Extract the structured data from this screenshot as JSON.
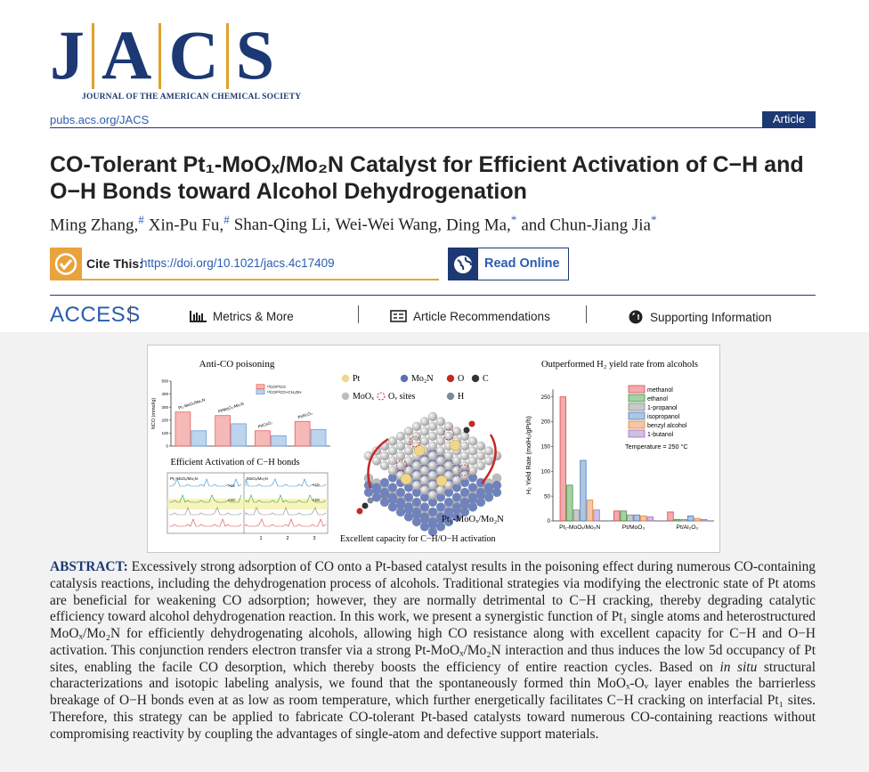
{
  "header": {
    "logo": {
      "letters": [
        "J",
        "A",
        "C",
        "S"
      ],
      "subtitle": "JOURNAL OF THE AMERICAN CHEMICAL SOCIETY"
    },
    "url": "pubs.acs.org/JACS",
    "article_type": "Article"
  },
  "title": "CO-Tolerant Pt₁-MoOₓ/Mo₂N Catalyst for Efficient Activation of C−H and O−H Bonds toward Alcohol Dehydrogenation",
  "authors": [
    {
      "name": "Ming Zhang,",
      "mark": "#"
    },
    {
      "name": "Xin-Pu Fu,",
      "mark": "#"
    },
    {
      "name": "Shan-Qing Li,"
    },
    {
      "name": "Wei-Wei Wang,"
    },
    {
      "name": "Ding Ma,",
      "mark": "*"
    },
    {
      "name": "and Chun-Jiang Jia",
      "mark": "*"
    }
  ],
  "cite": {
    "label": "Cite This:",
    "doi": "https://doi.org/10.1021/jacs.4c17409"
  },
  "read_online": "Read Online",
  "access": {
    "label": "ACCESS",
    "links": [
      "Metrics & More",
      "Article Recommendations",
      "Supporting Information"
    ]
  },
  "toc_graphic": {
    "section_title": "Efficient Activation of C−H bonds",
    "spectra": {
      "labels": [
        "Pt₁-MoOₓ/Mo₂N",
        "MoOₓ/Mo₂N"
      ],
      "scale_note": "×10",
      "xticks": [
        1,
        2,
        3
      ]
    },
    "legend": [
      {
        "label": "Pt",
        "color": "#f0d58a"
      },
      {
        "label": "Mo₂N",
        "color": "#5b70b3"
      },
      {
        "label": "O",
        "color": "#c62828"
      },
      {
        "label": "C",
        "color": "#333333"
      },
      {
        "label": "MoOₓ",
        "color": "#bdbdbd"
      },
      {
        "label": "Oᵥ sites",
        "color": "#c62828",
        "dashed": true
      },
      {
        "label": "H",
        "color": "#7d8a99"
      }
    ],
    "structure_label": "Pt₁-MoOₓ/Mo₂N",
    "caption": "Excellent capacity for C−H/O−H activation"
  },
  "chart_data": [
    {
      "type": "bar",
      "title": "Anti-CO poisoning",
      "y_label": "NCO (mmol/g)",
      "categories": [
        "Pt₁-MoOₓ/Mo₂N",
        "Pt/MoO₃-Mo₂N",
        "Pt/CeO₂",
        "Pt/Al₂O₃"
      ],
      "series": [
        {
          "name": "¹²CO/¹²CO",
          "color": "#e8635f",
          "values": [
            262,
            235,
            118,
            190
          ]
        },
        {
          "name": "¹³CO/¹²CO+CH₃OH",
          "color": "#6aa0d8",
          "values": [
            118,
            172,
            80,
            128
          ]
        }
      ],
      "ylim": [
        0,
        500
      ],
      "yticks": [
        0,
        100,
        200,
        300,
        400,
        500
      ]
    },
    {
      "type": "bar",
      "title": "Outperformed H₂ yield rate from alcohols",
      "y_label": "H₂ Yield Rate (molH₂/gPt/h)",
      "categories": [
        "Pt₁-MoOₓ/Mo₂N",
        "Pt/MoO₃",
        "Pt/Al₂O₃"
      ],
      "series": [
        {
          "name": "methanol",
          "color": "#e0474c",
          "values": [
            250,
            20,
            18
          ]
        },
        {
          "name": "ethanol",
          "color": "#3a9a3a",
          "values": [
            72,
            20,
            3
          ]
        },
        {
          "name": "1-propanol",
          "color": "#888888",
          "values": [
            22,
            12,
            3
          ]
        },
        {
          "name": "isopropanol",
          "color": "#4a7fc0",
          "values": [
            122,
            12,
            10
          ]
        },
        {
          "name": "benzyl alcohol",
          "color": "#e8823a",
          "values": [
            42,
            10,
            5
          ]
        },
        {
          "name": "1-butanol",
          "color": "#9a70c0",
          "values": [
            22,
            8,
            3
          ]
        }
      ],
      "ylim": [
        0,
        265
      ],
      "yticks": [
        0,
        50,
        100,
        150,
        200,
        250
      ],
      "annotation": "Temperature = 250 °C"
    }
  ],
  "abstract": {
    "label": "ABSTRACT:",
    "parts": [
      {
        "text": "Excessively strong adsorption of CO onto a Pt-based catalyst results in the poisoning effect during numerous CO-containing catalysis reactions, including the dehydrogenation process of alcohols. Traditional strategies via modifying the electronic state of Pt atoms are beneficial for weakening CO adsorption; however, they are normally detrimental to C−H cracking, thereby degrading catalytic efficiency toward alcohol dehydrogenation reaction. In this work, we present a synergistic function of Pt₁ single atoms and heterostructured MoOₓ/Mo₂N for efficiently dehydrogenating alcohols, allowing high CO resistance along with excellent capacity for C−H and O−H activation. This conjunction renders electron transfer via a strong Pt-MoOₓ/Mo₂N interaction and thus induces the low 5d occupancy of Pt sites, enabling the facile CO desorption, which thereby boosts the efficiency of entire reaction cycles. Based on "
      },
      {
        "text": "in situ",
        "italic": true
      },
      {
        "text": " structural characterizations and isotopic labeling analysis, we found that the spontaneously formed thin MoOₓ-Oᵥ layer enables the barrierless breakage of O−H bonds even at as low as room temperature, which further energetically facilitates C−H cracking on interfacial Pt₁ sites. Therefore, this strategy can be applied to fabricate CO-tolerant Pt-based catalysts toward numerous CO-containing reactions without compromising reactivity by coupling the advantages of single-atom and defective support materials."
      }
    ]
  }
}
